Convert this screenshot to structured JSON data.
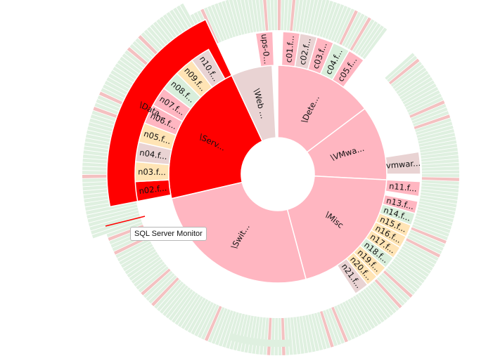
{
  "chart_data": {
    "type": "sunburst",
    "colors": {
      "critical": "#ff0000",
      "error": "#ffb6c1",
      "warning": "#ffe4b5",
      "ok": "#d9eedb",
      "unknown": "#e9d3d3",
      "thin_ok": "#dff0e0",
      "thin_err": "#f4c1c1"
    },
    "nodes": [
      {
        "id": "n-data",
        "label": "\\Data...",
        "level": 1,
        "a0": 259,
        "a1": 335,
        "status": "critical"
      },
      {
        "id": "n-serv",
        "label": "\\Serv...",
        "level": 2,
        "a0": 257,
        "a1": 335,
        "status": "critical"
      },
      {
        "id": "n-web",
        "label": "\\Web ...",
        "level": 2,
        "a0": 335,
        "a1": 357,
        "status": "unknown"
      },
      {
        "id": "n-dete",
        "label": "\\Dete...",
        "level": 2,
        "a0": 0,
        "a1": 53,
        "status": "error"
      },
      {
        "id": "n-vmwa",
        "label": "\\VMwa...",
        "level": 2,
        "a0": 53,
        "a1": 93,
        "status": "error"
      },
      {
        "id": "n-misc",
        "label": "\\Misc",
        "level": 2,
        "a0": 93,
        "a1": 165,
        "status": "error"
      },
      {
        "id": "n-swit",
        "label": "\\Swit...",
        "level": 2,
        "a0": 165,
        "a1": 257,
        "status": "error"
      },
      {
        "id": "n-ups",
        "label": "ups-0...",
        "level": 3,
        "a0": 351,
        "a1": 358,
        "status": "error"
      },
      {
        "id": "n-c01",
        "label": "c01.f...",
        "level": 3,
        "a0": 2,
        "a1": 9,
        "status": "error"
      },
      {
        "id": "n-c02",
        "label": "c02.f...",
        "level": 3,
        "a0": 9,
        "a1": 16,
        "status": "unknown"
      },
      {
        "id": "n-c03",
        "label": "c03.f...",
        "level": 3,
        "a0": 16,
        "a1": 23,
        "status": "error"
      },
      {
        "id": "n-c04",
        "label": "c04.f...",
        "level": 3,
        "a0": 23,
        "a1": 30,
        "status": "ok"
      },
      {
        "id": "n-c05",
        "label": "c05.f...",
        "level": 3,
        "a0": 30,
        "a1": 37,
        "status": "error"
      },
      {
        "id": "n-vmwar",
        "label": "vmwar...",
        "level": 3,
        "a0": 81,
        "a1": 90,
        "status": "unknown"
      },
      {
        "id": "n-n11",
        "label": "n11.f...",
        "level": 3,
        "a0": 93,
        "a1": 99,
        "status": "error"
      },
      {
        "id": "n-n13",
        "label": "n13.f...",
        "level": 3,
        "a0": 101,
        "a1": 106,
        "status": "error"
      },
      {
        "id": "n-n14",
        "label": "n14.f...",
        "level": 3,
        "a0": 106,
        "a1": 111,
        "status": "ok"
      },
      {
        "id": "n-n15",
        "label": "n15.f...",
        "level": 3,
        "a0": 111,
        "a1": 116,
        "status": "warning"
      },
      {
        "id": "n-n16",
        "label": "n16.f...",
        "level": 3,
        "a0": 116,
        "a1": 121,
        "status": "warning"
      },
      {
        "id": "n-n17",
        "label": "n17.f...",
        "level": 3,
        "a0": 121,
        "a1": 126,
        "status": "warning"
      },
      {
        "id": "n-n18",
        "label": "n18.f...",
        "level": 3,
        "a0": 126,
        "a1": 131,
        "status": "ok"
      },
      {
        "id": "n-n19",
        "label": "n19.f...",
        "level": 3,
        "a0": 131,
        "a1": 136,
        "status": "warning"
      },
      {
        "id": "n-n20",
        "label": "n20.f...",
        "level": 3,
        "a0": 136,
        "a1": 141,
        "status": "warning"
      },
      {
        "id": "n-n21",
        "label": "n21.f...",
        "level": 3,
        "a0": 141,
        "a1": 147,
        "status": "unknown"
      },
      {
        "id": "n-n02",
        "label": "n02.f...",
        "level": 3,
        "a0": 259,
        "a1": 267,
        "status": "critical"
      },
      {
        "id": "n-n03",
        "label": "n03.f...",
        "level": 3,
        "a0": 267,
        "a1": 275,
        "status": "warning"
      },
      {
        "id": "n-n04",
        "label": "n04.f...",
        "level": 3,
        "a0": 275,
        "a1": 283,
        "status": "unknown"
      },
      {
        "id": "n-n05",
        "label": "n05.f...",
        "level": 3,
        "a0": 283,
        "a1": 291,
        "status": "warning"
      },
      {
        "id": "n-n06",
        "label": "n06.f...",
        "level": 3,
        "a0": 291,
        "a1": 299,
        "status": "error"
      },
      {
        "id": "n-n07",
        "label": "n07.f...",
        "level": 3,
        "a0": 299,
        "a1": 307,
        "status": "error"
      },
      {
        "id": "n-n08",
        "label": "n08.f...",
        "level": 3,
        "a0": 307,
        "a1": 315,
        "status": "ok"
      },
      {
        "id": "n-n09",
        "label": "n09.f...",
        "level": 3,
        "a0": 315,
        "a1": 323,
        "status": "warning"
      },
      {
        "id": "n-n10",
        "label": "n10.f...",
        "level": 3,
        "a0": 323,
        "a1": 331,
        "status": "unknown"
      }
    ],
    "tooltip": "SQL Server Monitor"
  }
}
